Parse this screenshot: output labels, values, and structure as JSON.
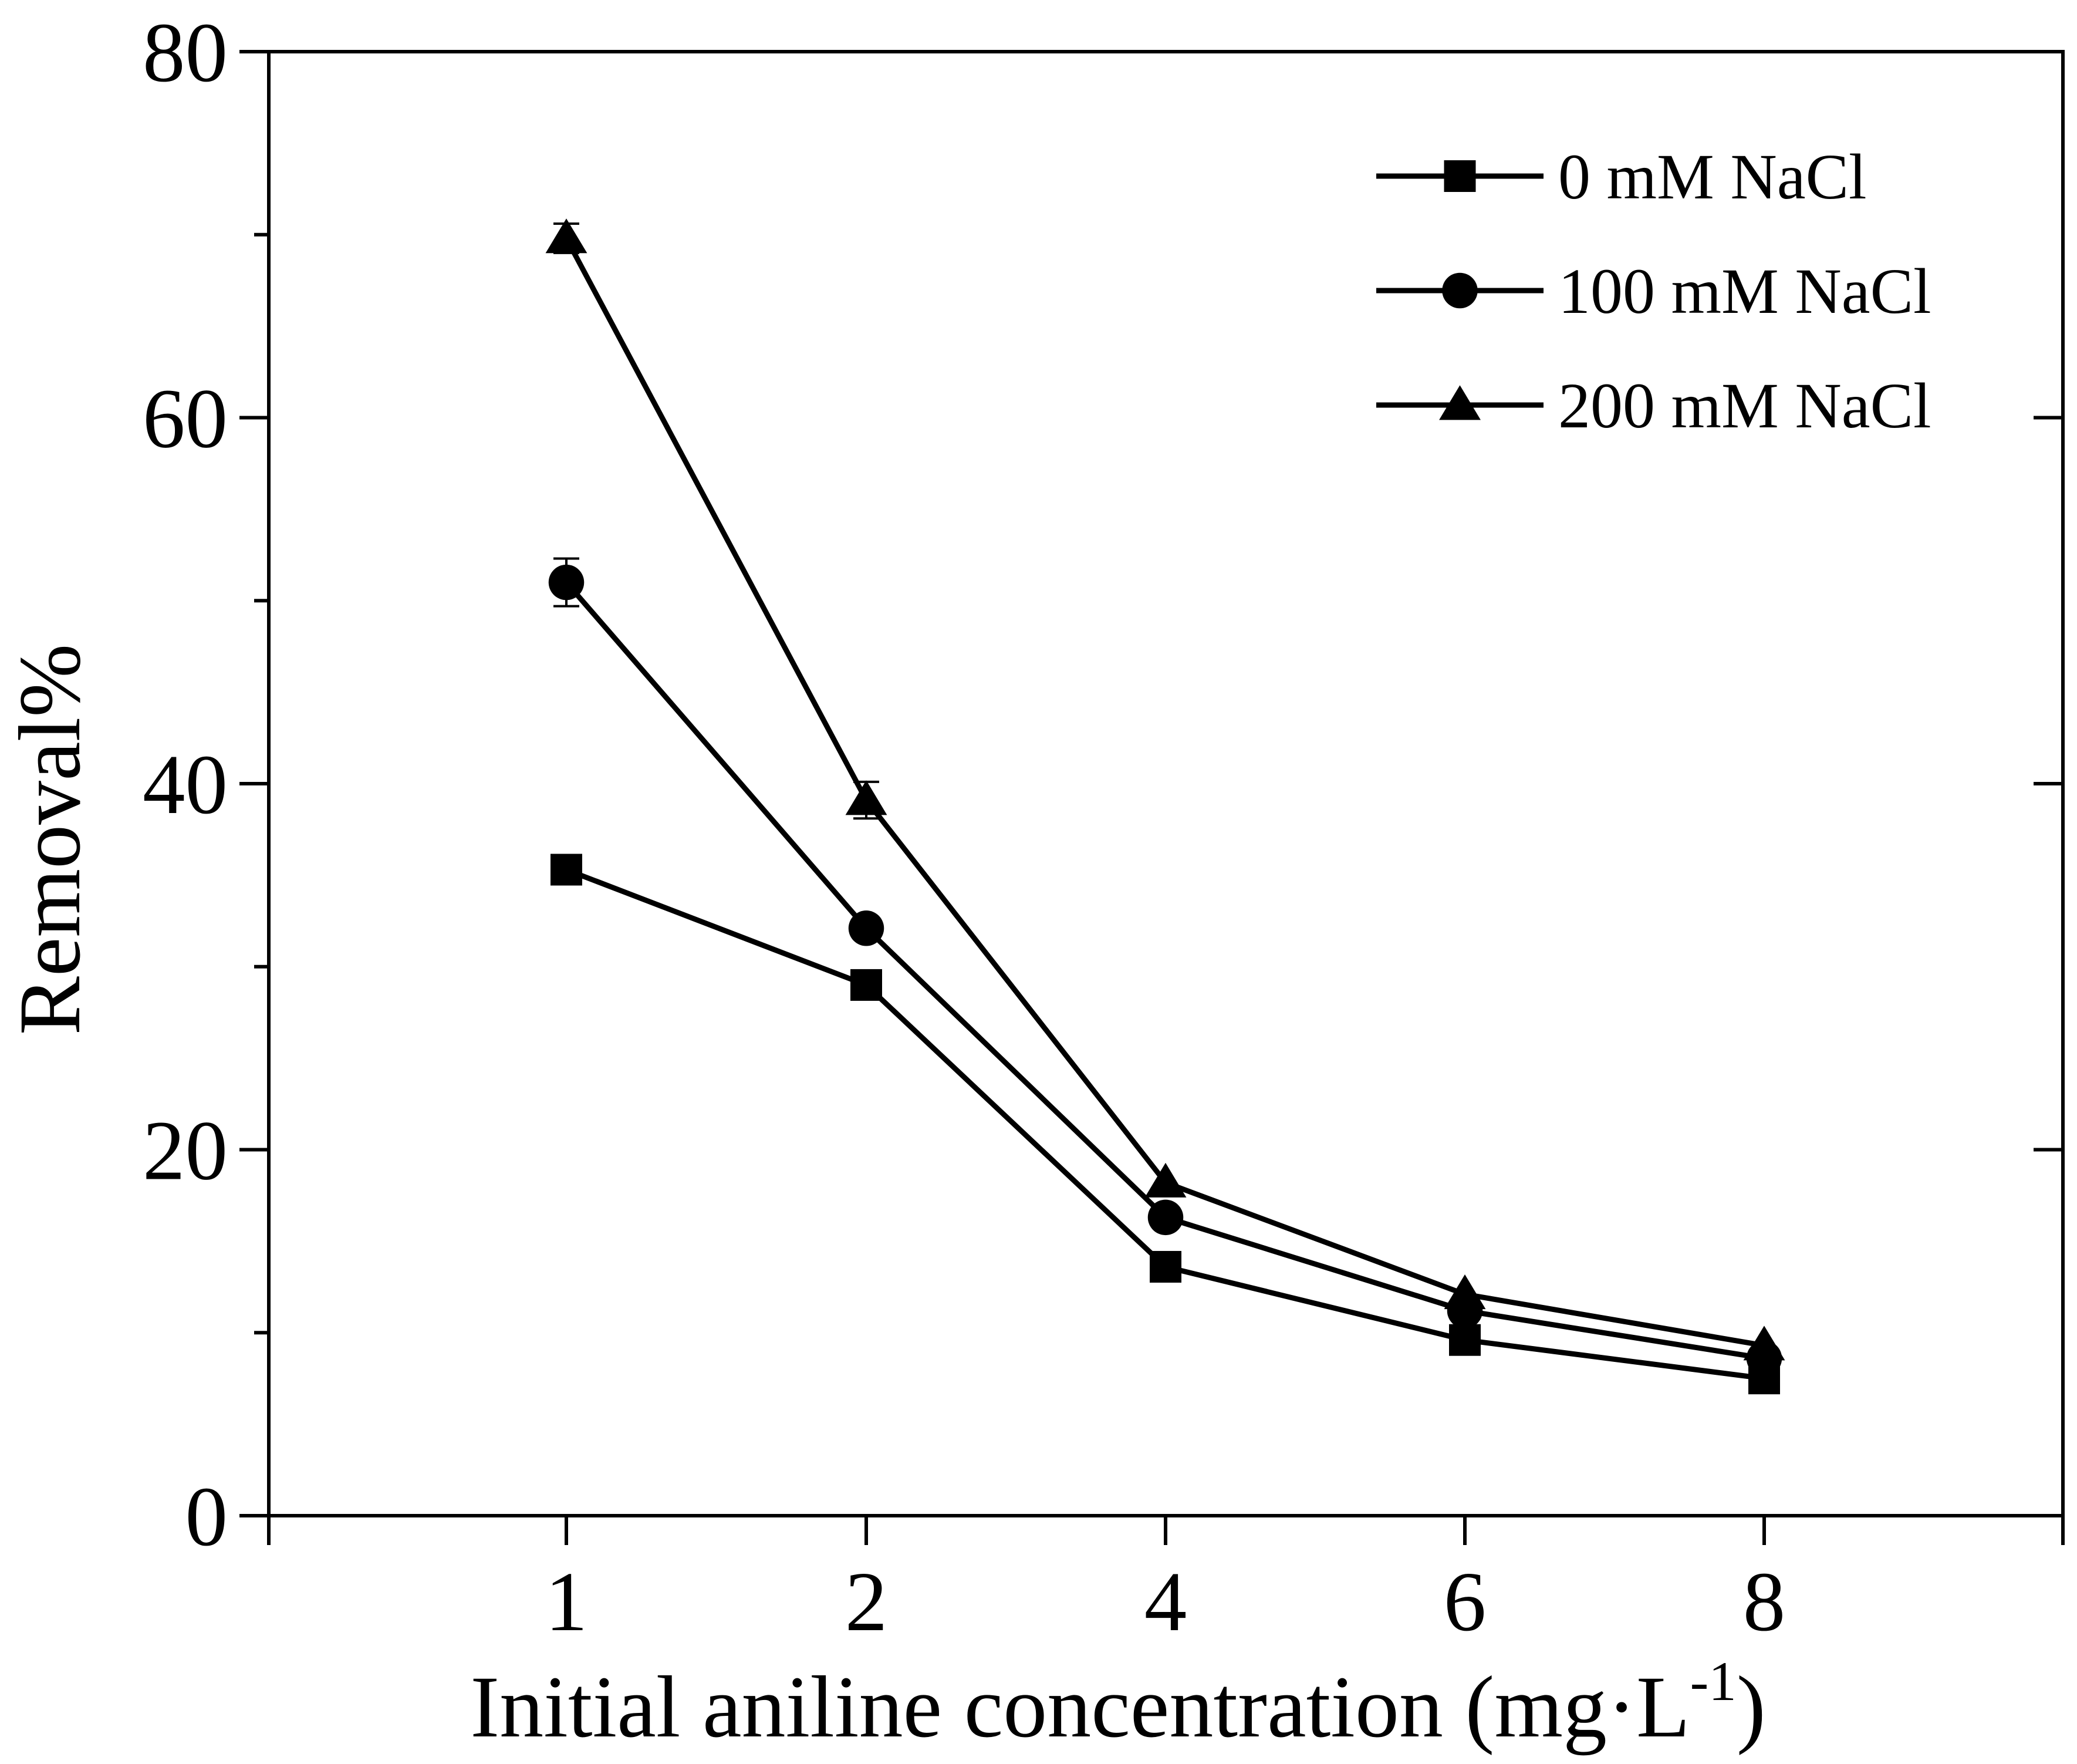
{
  "chart_data": {
    "type": "line",
    "title": "",
    "xlabel": "Initial aniline concentration (mg·L",
    "xlabel_sup": "-1",
    "xlabel_close": ")",
    "ylabel": "Removal%",
    "categories": [
      "1",
      "2",
      "4",
      "6",
      "8"
    ],
    "yticks": [
      "0",
      "20",
      "40",
      "60",
      "80"
    ],
    "ylim": [
      0,
      80
    ],
    "legend_position": "top-right",
    "grid": false,
    "series": [
      {
        "name": "0 mM NaCl",
        "marker": "square",
        "values": [
          35.3,
          29.0,
          13.6,
          9.6,
          7.5
        ]
      },
      {
        "name": "100 mM NaCl",
        "marker": "circle",
        "values": [
          51.0,
          32.1,
          16.3,
          11.2,
          8.6
        ]
      },
      {
        "name": "200 mM NaCl",
        "marker": "triangle",
        "values": [
          69.8,
          39.1,
          18.2,
          12.1,
          9.3
        ]
      }
    ],
    "error_bars": [
      {
        "series": 1,
        "index": 0,
        "error": 1.3
      },
      {
        "series": 2,
        "index": 0,
        "error": 0.8
      },
      {
        "series": 2,
        "index": 1,
        "error": 1.0
      }
    ]
  }
}
